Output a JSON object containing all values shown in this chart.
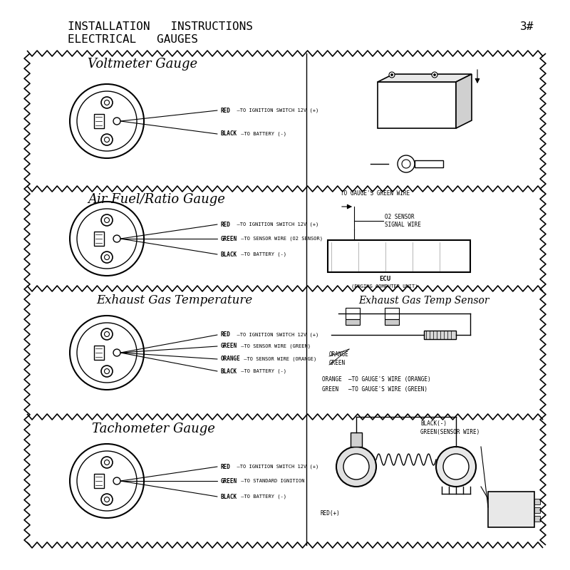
{
  "title_line1": "INSTALLATION   INSTRUCTIONS",
  "title_line2": "ELECTRICAL   GAUGES",
  "page_num": "3#",
  "bg_color": "#ffffff",
  "sections": [
    {
      "title": "Voltmeter Gauge",
      "wires": [
        {
          "color": "RED",
          "desc": "  —TO IGNITION SWITCH 12V (+)"
        },
        {
          "color": "BLACK",
          "desc": " —TO BATTERY (-)"
        }
      ]
    },
    {
      "title": "Air Fuel/Ratio Gauge",
      "wires": [
        {
          "color": "RED",
          "desc": "  —TO IGNITION SWITCH 12V (+)"
        },
        {
          "color": "GREEN",
          "desc": " —TO SENSOR WIRE (O2 SENSOR)"
        },
        {
          "color": "BLACK",
          "desc": " —TO BATTERY (-)"
        }
      ]
    },
    {
      "title": "Exhaust Gas Temperature",
      "wires": [
        {
          "color": "RED",
          "desc": "  —TO IGNITION SWITCH 12V (+)"
        },
        {
          "color": "GREEN",
          "desc": " —TO SENSOR WIRE (GREEN)"
        },
        {
          "color": "ORANGE",
          "desc": " —TO SENSOR WIRE (ORANGE)"
        },
        {
          "color": "BLACK",
          "desc": " —TO BATTERY (-)"
        }
      ]
    },
    {
      "title": "Tachometer Gauge",
      "wires": [
        {
          "color": "RED",
          "desc": "  —TO IGNITION SWITCH 12V (+)"
        },
        {
          "color": "GREEN",
          "desc": " —TO STANDARD IGNITION"
        },
        {
          "color": "BLACK",
          "desc": " —TO BATTERY (-)"
        }
      ]
    }
  ],
  "right_panel1_labels": [
    "TO GAUGE'S GREEN WIRE",
    "O2 SENSOR\nSIGNAL WIRE",
    "ECU",
    "(ENGING COMPUTER UNIT)"
  ],
  "right_panel2_title": "Exhaust Gas Temp Sensor",
  "right_panel2_labels": [
    "ORANGE  —TO GAUGE'S WIRE (ORANGE)",
    "GREEN   —TO GAUGE'S WIRE (GREEN)"
  ],
  "right_panel3_labels": [
    "BLACK(-)",
    "GREEN(SENSOR WIRE)",
    "RED(+)"
  ]
}
